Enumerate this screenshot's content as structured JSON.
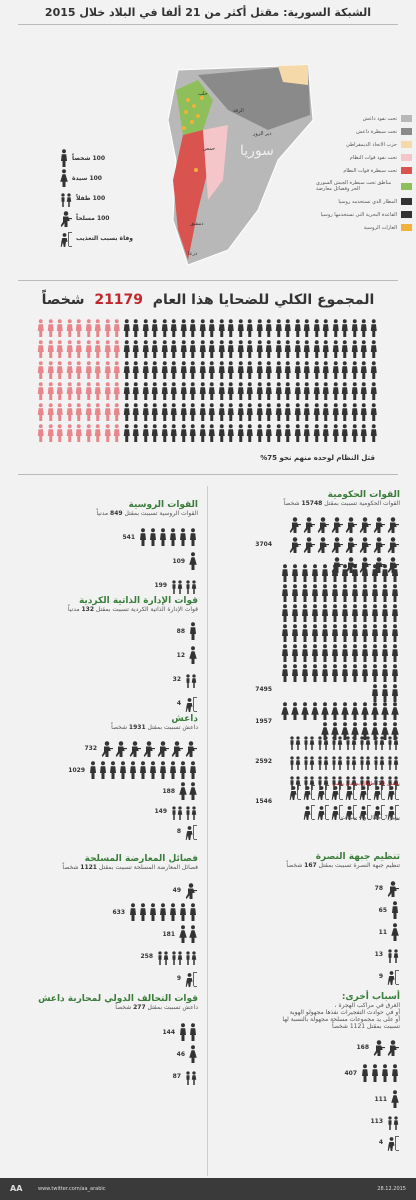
{
  "title": "الشبكة السورية: مقتل أكثر من 21 ألفا في البلاد خلال 2015",
  "map": {
    "country_label": "سوريا",
    "city_labels": [
      "الرقة",
      "دير الزور",
      "حلب",
      "حمص",
      "دمشق",
      "درعا"
    ]
  },
  "legend": [
    {
      "label": "تحت نفوذ داعش",
      "color": "#b8b8b8"
    },
    {
      "label": "تحت سيطرة داعش",
      "color": "#8a8a8a"
    },
    {
      "label": "حزب الاتحاد الديمقراطي",
      "color": "#f5d9a8"
    },
    {
      "label": "تحت نفوذ قوات النظام",
      "color": "#f4c6c9"
    },
    {
      "label": "تحت سيطرة قوات النظام",
      "color": "#d9534f"
    },
    {
      "label": "مناطق تحت سيطرة الجيش السوري الحر وفصائل معارضة",
      "color": "#8fbf5a"
    },
    {
      "label": "المطار الذي تستخدمه روسيا",
      "color": "#333333"
    },
    {
      "label": "القاعدة البحرية التي تستخدمها روسيا",
      "color": "#333333"
    },
    {
      "label": "الغارات الروسية",
      "color": "#f0b23a"
    }
  ],
  "key": [
    {
      "value": "100",
      "label": "شخصاً"
    },
    {
      "value": "100",
      "label": "سيدة"
    },
    {
      "value": "100",
      "label": "طفلاً"
    },
    {
      "value": "100",
      "label": "مسلحاً"
    },
    {
      "value": "",
      "label": "وفاة بسبب التعذيب"
    }
  ],
  "total": {
    "prefix": "المجموع الكلي للضحايا هذا العام",
    "number": "21179",
    "suffix": "شخصاً"
  },
  "total_note": "قتل النظام لوحده منهم نحو 75%",
  "gov": {
    "title": "القوات الحكومية",
    "subtitle_pre": "القوات الحكومية تسببت بمقتل",
    "subtitle_num": "15748",
    "subtitle_post": "شخصاً",
    "rows": [
      {
        "v": "3704"
      },
      {
        "v": "7495"
      },
      {
        "v": "1957"
      },
      {
        "v": "2592"
      },
      {
        "v": "1546"
      }
    ],
    "note1": "بمقتل 10 أطفال بمعدل يومي",
    "note2": "يبهير 7 أطفال و 4 سيدات"
  },
  "nusra": {
    "title": "تنظيم جبهة النصرة",
    "subtitle_pre": "تنظيم جبهة النصرة تسببت بمقتل",
    "subtitle_num": "167",
    "subtitle_post": "شخصاً",
    "rows": [
      {
        "v": "78"
      },
      {
        "v": "65"
      },
      {
        "v": "11"
      },
      {
        "v": "13"
      },
      {
        "v": "9"
      }
    ]
  },
  "other": {
    "title": "أسباب أخرى:",
    "lines": [
      "الغرق في مراكب الهجرة ،",
      "أو في حوادث التفجيرات نفذها مجهولو الهوية",
      "أو على يد مجموعات مسلحة مجهولة بالنسبة لها",
      "تسببت بمقتل 1121 شخصاً"
    ],
    "rows": [
      {
        "v": "168"
      },
      {
        "v": "407"
      },
      {
        "v": "111"
      },
      {
        "v": "113"
      },
      {
        "v": "4"
      }
    ]
  },
  "russia": {
    "title": "القوات الروسية",
    "subtitle_pre": "القوات الروسية  تسببت بمقتل",
    "subtitle_num": "849",
    "subtitle_post": "مدنياً",
    "rows": [
      {
        "v": "541"
      },
      {
        "v": "109"
      },
      {
        "v": "199"
      }
    ]
  },
  "kurd": {
    "title": "قوات الإدارة الذاتية الكردية",
    "subtitle_pre": "قوات الإدارة الذاتية الكردية  تسببت بمقتل",
    "subtitle_num": "132",
    "subtitle_post": "مدنياً",
    "rows": [
      {
        "v": "88"
      },
      {
        "v": "12"
      },
      {
        "v": "32"
      },
      {
        "v": "4"
      }
    ]
  },
  "isis": {
    "title": "داعش",
    "subtitle_pre": "داعش  تسببت بمقتل",
    "subtitle_num": "1931",
    "subtitle_post": "شخصاً",
    "rows": [
      {
        "v": "732"
      },
      {
        "v": "1029"
      },
      {
        "v": "188"
      },
      {
        "v": "149"
      },
      {
        "v": "8"
      }
    ]
  },
  "opp": {
    "title": "فصائل المعارضة المسلحة",
    "subtitle_pre": "فصائل المعارضة المسلحة  تسببت بمقتل",
    "subtitle_num": "1121",
    "subtitle_post": "شخصاً",
    "rows": [
      {
        "v": "49"
      },
      {
        "v": "633"
      },
      {
        "v": "181"
      },
      {
        "v": "258"
      },
      {
        "v": "9"
      }
    ]
  },
  "coal": {
    "title": "قوات التحالف الدولي لمحاربة داعش",
    "subtitle_pre": "داعش  تسببت بمقتل",
    "subtitle_num": "277",
    "subtitle_post": "شخصاً",
    "rows": [
      {
        "v": "144"
      },
      {
        "v": "46"
      },
      {
        "v": "87"
      }
    ]
  },
  "footer": {
    "brand": "AA",
    "url": "www.twitter.com/aa_arabic",
    "date": "28.12.2015"
  }
}
